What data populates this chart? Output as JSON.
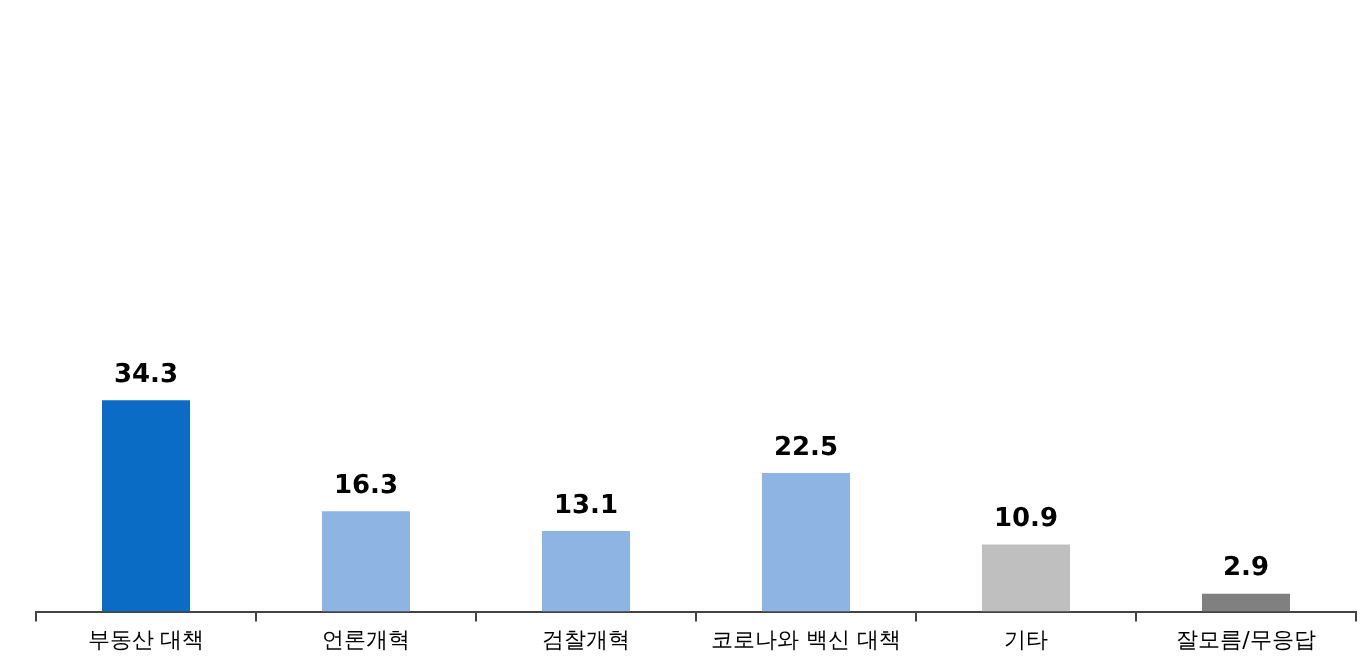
{
  "chart_data": {
    "type": "bar",
    "categories": [
      "부동산 대책",
      "언론개혁",
      "검찰개혁",
      "코로나와 백신 대책",
      "기타",
      "잘모름/무응답"
    ],
    "values": [
      34.3,
      16.3,
      13.1,
      22.5,
      10.9,
      2.9
    ],
    "colors": [
      "#0a6cc4",
      "#8db4e2",
      "#8db4e2",
      "#8db4e2",
      "#bfbfbf",
      "#808080"
    ],
    "data_labels": true,
    "tick_labels": "x",
    "legend": false
  }
}
